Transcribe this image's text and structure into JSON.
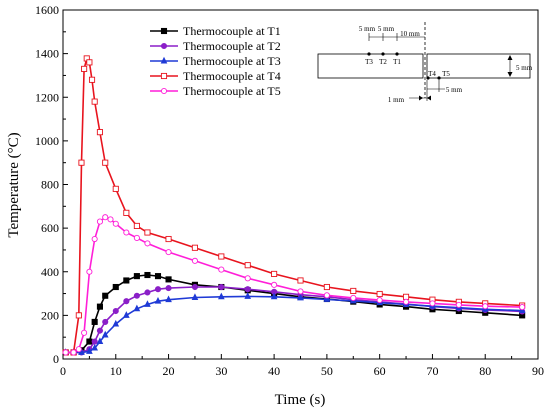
{
  "chart_data": {
    "type": "line",
    "xlabel": "Time (s)",
    "ylabel": "Temperature (°C)",
    "xlim": [
      0,
      90
    ],
    "ylim": [
      0,
      1600
    ],
    "xticks": [
      0,
      10,
      20,
      30,
      40,
      50,
      60,
      70,
      80,
      90
    ],
    "yticks": [
      0,
      200,
      400,
      600,
      800,
      1000,
      1200,
      1400,
      1600
    ],
    "grid": false,
    "legend": "top-center",
    "series": [
      {
        "name": "Thermocouple at T1",
        "color": "#000000",
        "marker": "square-filled",
        "points": [
          [
            0.5,
            30
          ],
          [
            2,
            30
          ],
          [
            3.5,
            40
          ],
          [
            5,
            80
          ],
          [
            6,
            170
          ],
          [
            7,
            240
          ],
          [
            8,
            290
          ],
          [
            10,
            330
          ],
          [
            12,
            360
          ],
          [
            14,
            380
          ],
          [
            16,
            385
          ],
          [
            18,
            380
          ],
          [
            20,
            365
          ],
          [
            25,
            340
          ],
          [
            30,
            330
          ],
          [
            35,
            315
          ],
          [
            40,
            300
          ],
          [
            45,
            285
          ],
          [
            50,
            275
          ],
          [
            55,
            263
          ],
          [
            60,
            250
          ],
          [
            65,
            240
          ],
          [
            70,
            228
          ],
          [
            75,
            220
          ],
          [
            80,
            212
          ],
          [
            87,
            200
          ]
        ]
      },
      {
        "name": "Thermocouple at T2",
        "color": "#8b1fc8",
        "marker": "circle-filled",
        "points": [
          [
            0.5,
            30
          ],
          [
            2,
            30
          ],
          [
            3.5,
            30
          ],
          [
            5,
            45
          ],
          [
            6,
            80
          ],
          [
            7,
            130
          ],
          [
            8,
            170
          ],
          [
            10,
            220
          ],
          [
            12,
            265
          ],
          [
            14,
            290
          ],
          [
            16,
            305
          ],
          [
            18,
            320
          ],
          [
            20,
            325
          ],
          [
            25,
            330
          ],
          [
            30,
            330
          ],
          [
            35,
            320
          ],
          [
            40,
            308
          ],
          [
            45,
            295
          ],
          [
            50,
            285
          ],
          [
            55,
            272
          ],
          [
            60,
            262
          ],
          [
            65,
            252
          ],
          [
            70,
            240
          ],
          [
            75,
            232
          ],
          [
            80,
            225
          ],
          [
            87,
            218
          ]
        ]
      },
      {
        "name": "Thermocouple at T3",
        "color": "#1f3ad6",
        "marker": "triangle-filled",
        "points": [
          [
            0.5,
            30
          ],
          [
            2,
            30
          ],
          [
            3.5,
            30
          ],
          [
            5,
            35
          ],
          [
            6,
            50
          ],
          [
            7,
            80
          ],
          [
            8,
            110
          ],
          [
            10,
            160
          ],
          [
            12,
            200
          ],
          [
            14,
            230
          ],
          [
            16,
            250
          ],
          [
            18,
            265
          ],
          [
            20,
            272
          ],
          [
            25,
            282
          ],
          [
            30,
            285
          ],
          [
            35,
            287
          ],
          [
            40,
            285
          ],
          [
            45,
            280
          ],
          [
            50,
            273
          ],
          [
            55,
            266
          ],
          [
            60,
            258
          ],
          [
            65,
            250
          ],
          [
            70,
            242
          ],
          [
            75,
            235
          ],
          [
            80,
            228
          ],
          [
            87,
            222
          ]
        ]
      },
      {
        "name": "Thermocouple at T4",
        "color": "#e8141e",
        "marker": "square-open",
        "points": [
          [
            0.5,
            30
          ],
          [
            2,
            30
          ],
          [
            3,
            200
          ],
          [
            3.5,
            900
          ],
          [
            4,
            1330
          ],
          [
            4.5,
            1378
          ],
          [
            5,
            1360
          ],
          [
            5.5,
            1280
          ],
          [
            6,
            1180
          ],
          [
            7,
            1040
          ],
          [
            8,
            900
          ],
          [
            10,
            780
          ],
          [
            12,
            670
          ],
          [
            14,
            610
          ],
          [
            16,
            580
          ],
          [
            20,
            550
          ],
          [
            25,
            510
          ],
          [
            30,
            470
          ],
          [
            35,
            430
          ],
          [
            40,
            390
          ],
          [
            45,
            360
          ],
          [
            50,
            330
          ],
          [
            55,
            312
          ],
          [
            60,
            298
          ],
          [
            65,
            285
          ],
          [
            70,
            272
          ],
          [
            75,
            262
          ],
          [
            80,
            255
          ],
          [
            87,
            245
          ]
        ]
      },
      {
        "name": "Thermocouple at T5",
        "color": "#ff1fd8",
        "marker": "circle-open",
        "points": [
          [
            0.5,
            30
          ],
          [
            2,
            30
          ],
          [
            3,
            45
          ],
          [
            4,
            120
          ],
          [
            5,
            400
          ],
          [
            6,
            550
          ],
          [
            7,
            630
          ],
          [
            8,
            650
          ],
          [
            9,
            640
          ],
          [
            10,
            620
          ],
          [
            12,
            580
          ],
          [
            14,
            555
          ],
          [
            16,
            530
          ],
          [
            20,
            490
          ],
          [
            25,
            450
          ],
          [
            30,
            410
          ],
          [
            35,
            370
          ],
          [
            40,
            340
          ],
          [
            45,
            310
          ],
          [
            50,
            292
          ],
          [
            55,
            280
          ],
          [
            60,
            270
          ],
          [
            65,
            262
          ],
          [
            70,
            255
          ],
          [
            75,
            248
          ],
          [
            80,
            242
          ],
          [
            87,
            238
          ]
        ]
      }
    ],
    "inset": {
      "labels": {
        "d1": "5 mm",
        "d2": "5 mm",
        "d3": "10 mm",
        "p1": "T3",
        "p2": "T2",
        "p3": "T1",
        "p4": "T4",
        "p5": "T5",
        "thick": "5 mm",
        "gap": "1 mm",
        "d4": "5 mm"
      }
    }
  }
}
